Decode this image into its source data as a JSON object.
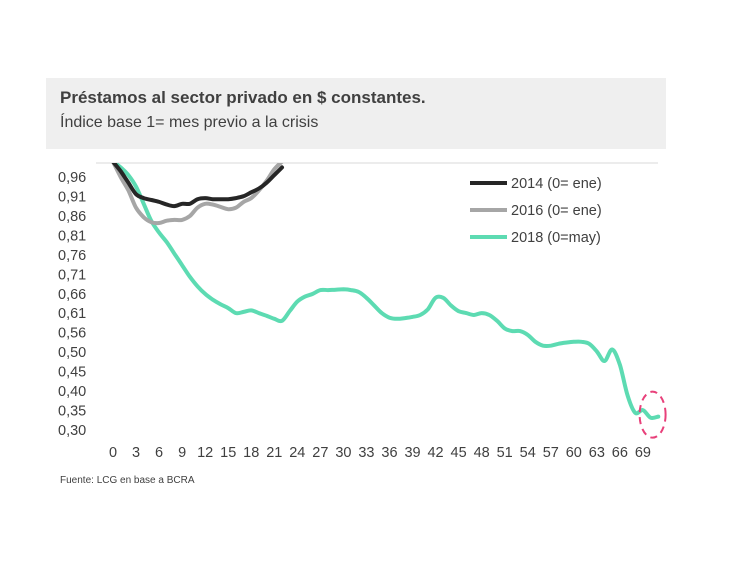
{
  "header": {
    "title": "Préstamos al sector privado en $ constantes.",
    "subtitle": "Índice base 1= mes previo a la crisis"
  },
  "source": "Fuente: LCG en base a BCRA",
  "colors": {
    "series_2014": "#262626",
    "series_2016": "#a6a6a6",
    "series_2018": "#5ddbb2",
    "highlight": "#e8407a",
    "title_bg": "#efefef"
  },
  "chart_data": {
    "type": "line",
    "title": "Préstamos al sector privado en $ constantes.",
    "subtitle": "Índice base 1= mes previo a la crisis",
    "xlabel": "",
    "ylabel": "",
    "xlim": [
      0,
      71
    ],
    "ylim": [
      0.3,
      0.96
    ],
    "x_ticks": [
      "0",
      "3",
      "6",
      "9",
      "12",
      "15",
      "18",
      "21",
      "24",
      "27",
      "30",
      "33",
      "36",
      "39",
      "42",
      "45",
      "48",
      "51",
      "54",
      "57",
      "60",
      "63",
      "66",
      "69"
    ],
    "y_ticks": [
      "0,96",
      "0,91",
      "0,86",
      "0,81",
      "0,76",
      "0,71",
      "0,66",
      "0,61",
      "0,56",
      "0,50",
      "0,45",
      "0,40",
      "0,35",
      "0,30"
    ],
    "legend_position": "top-right",
    "grid": false,
    "highlight": {
      "shape": "dashed-ellipse",
      "x": 70,
      "y": 0.34
    },
    "series": [
      {
        "name": "2014 (0= ene)",
        "color": "#262626",
        "x": [
          0,
          1,
          2,
          3,
          4,
          5,
          6,
          7,
          8,
          9,
          10,
          11,
          12,
          13,
          14,
          15,
          16,
          17,
          18,
          19,
          20,
          21,
          22
        ],
        "y": [
          1.0,
          0.975,
          0.945,
          0.915,
          0.905,
          0.9,
          0.895,
          0.888,
          0.884,
          0.89,
          0.89,
          0.902,
          0.905,
          0.902,
          0.902,
          0.902,
          0.905,
          0.91,
          0.92,
          0.93,
          0.945,
          0.965,
          0.985
        ]
      },
      {
        "name": "2016 (0= ene)",
        "color": "#a6a6a6",
        "x": [
          0,
          1,
          2,
          3,
          4,
          5,
          6,
          7,
          8,
          9,
          10,
          11,
          12,
          13,
          14,
          15,
          16,
          17,
          18,
          19,
          20,
          21,
          22
        ],
        "y": [
          1.0,
          0.96,
          0.925,
          0.88,
          0.855,
          0.842,
          0.84,
          0.846,
          0.848,
          0.848,
          0.858,
          0.88,
          0.89,
          0.888,
          0.882,
          0.876,
          0.88,
          0.895,
          0.905,
          0.925,
          0.95,
          0.98,
          1.0
        ]
      },
      {
        "name": "2018 (0=may)",
        "color": "#5ddbb2",
        "x": [
          0,
          1,
          2,
          3,
          4,
          5,
          6,
          7,
          8,
          9,
          10,
          11,
          12,
          13,
          14,
          15,
          16,
          17,
          18,
          19,
          20,
          21,
          22,
          23,
          24,
          25,
          26,
          27,
          28,
          29,
          30,
          31,
          32,
          33,
          34,
          35,
          36,
          37,
          38,
          39,
          40,
          41,
          42,
          43,
          44,
          45,
          46,
          47,
          48,
          49,
          50,
          51,
          52,
          53,
          54,
          55,
          56,
          57,
          58,
          59,
          60,
          61,
          62,
          63,
          64,
          65,
          66,
          67,
          68,
          69,
          70,
          71
        ],
        "y": [
          1.0,
          0.985,
          0.965,
          0.935,
          0.89,
          0.845,
          0.815,
          0.79,
          0.76,
          0.73,
          0.7,
          0.675,
          0.655,
          0.64,
          0.628,
          0.618,
          0.605,
          0.608,
          0.612,
          0.605,
          0.598,
          0.59,
          0.585,
          0.61,
          0.635,
          0.648,
          0.655,
          0.665,
          0.665,
          0.666,
          0.667,
          0.665,
          0.66,
          0.645,
          0.625,
          0.605,
          0.593,
          0.59,
          0.592,
          0.595,
          0.6,
          0.615,
          0.645,
          0.645,
          0.625,
          0.61,
          0.605,
          0.6,
          0.605,
          0.6,
          0.585,
          0.565,
          0.558,
          0.558,
          0.548,
          0.53,
          0.52,
          0.52,
          0.525,
          0.528,
          0.53,
          0.53,
          0.525,
          0.505,
          0.48,
          0.51,
          0.47,
          0.39,
          0.345,
          0.352,
          0.332,
          0.335
        ]
      }
    ]
  }
}
